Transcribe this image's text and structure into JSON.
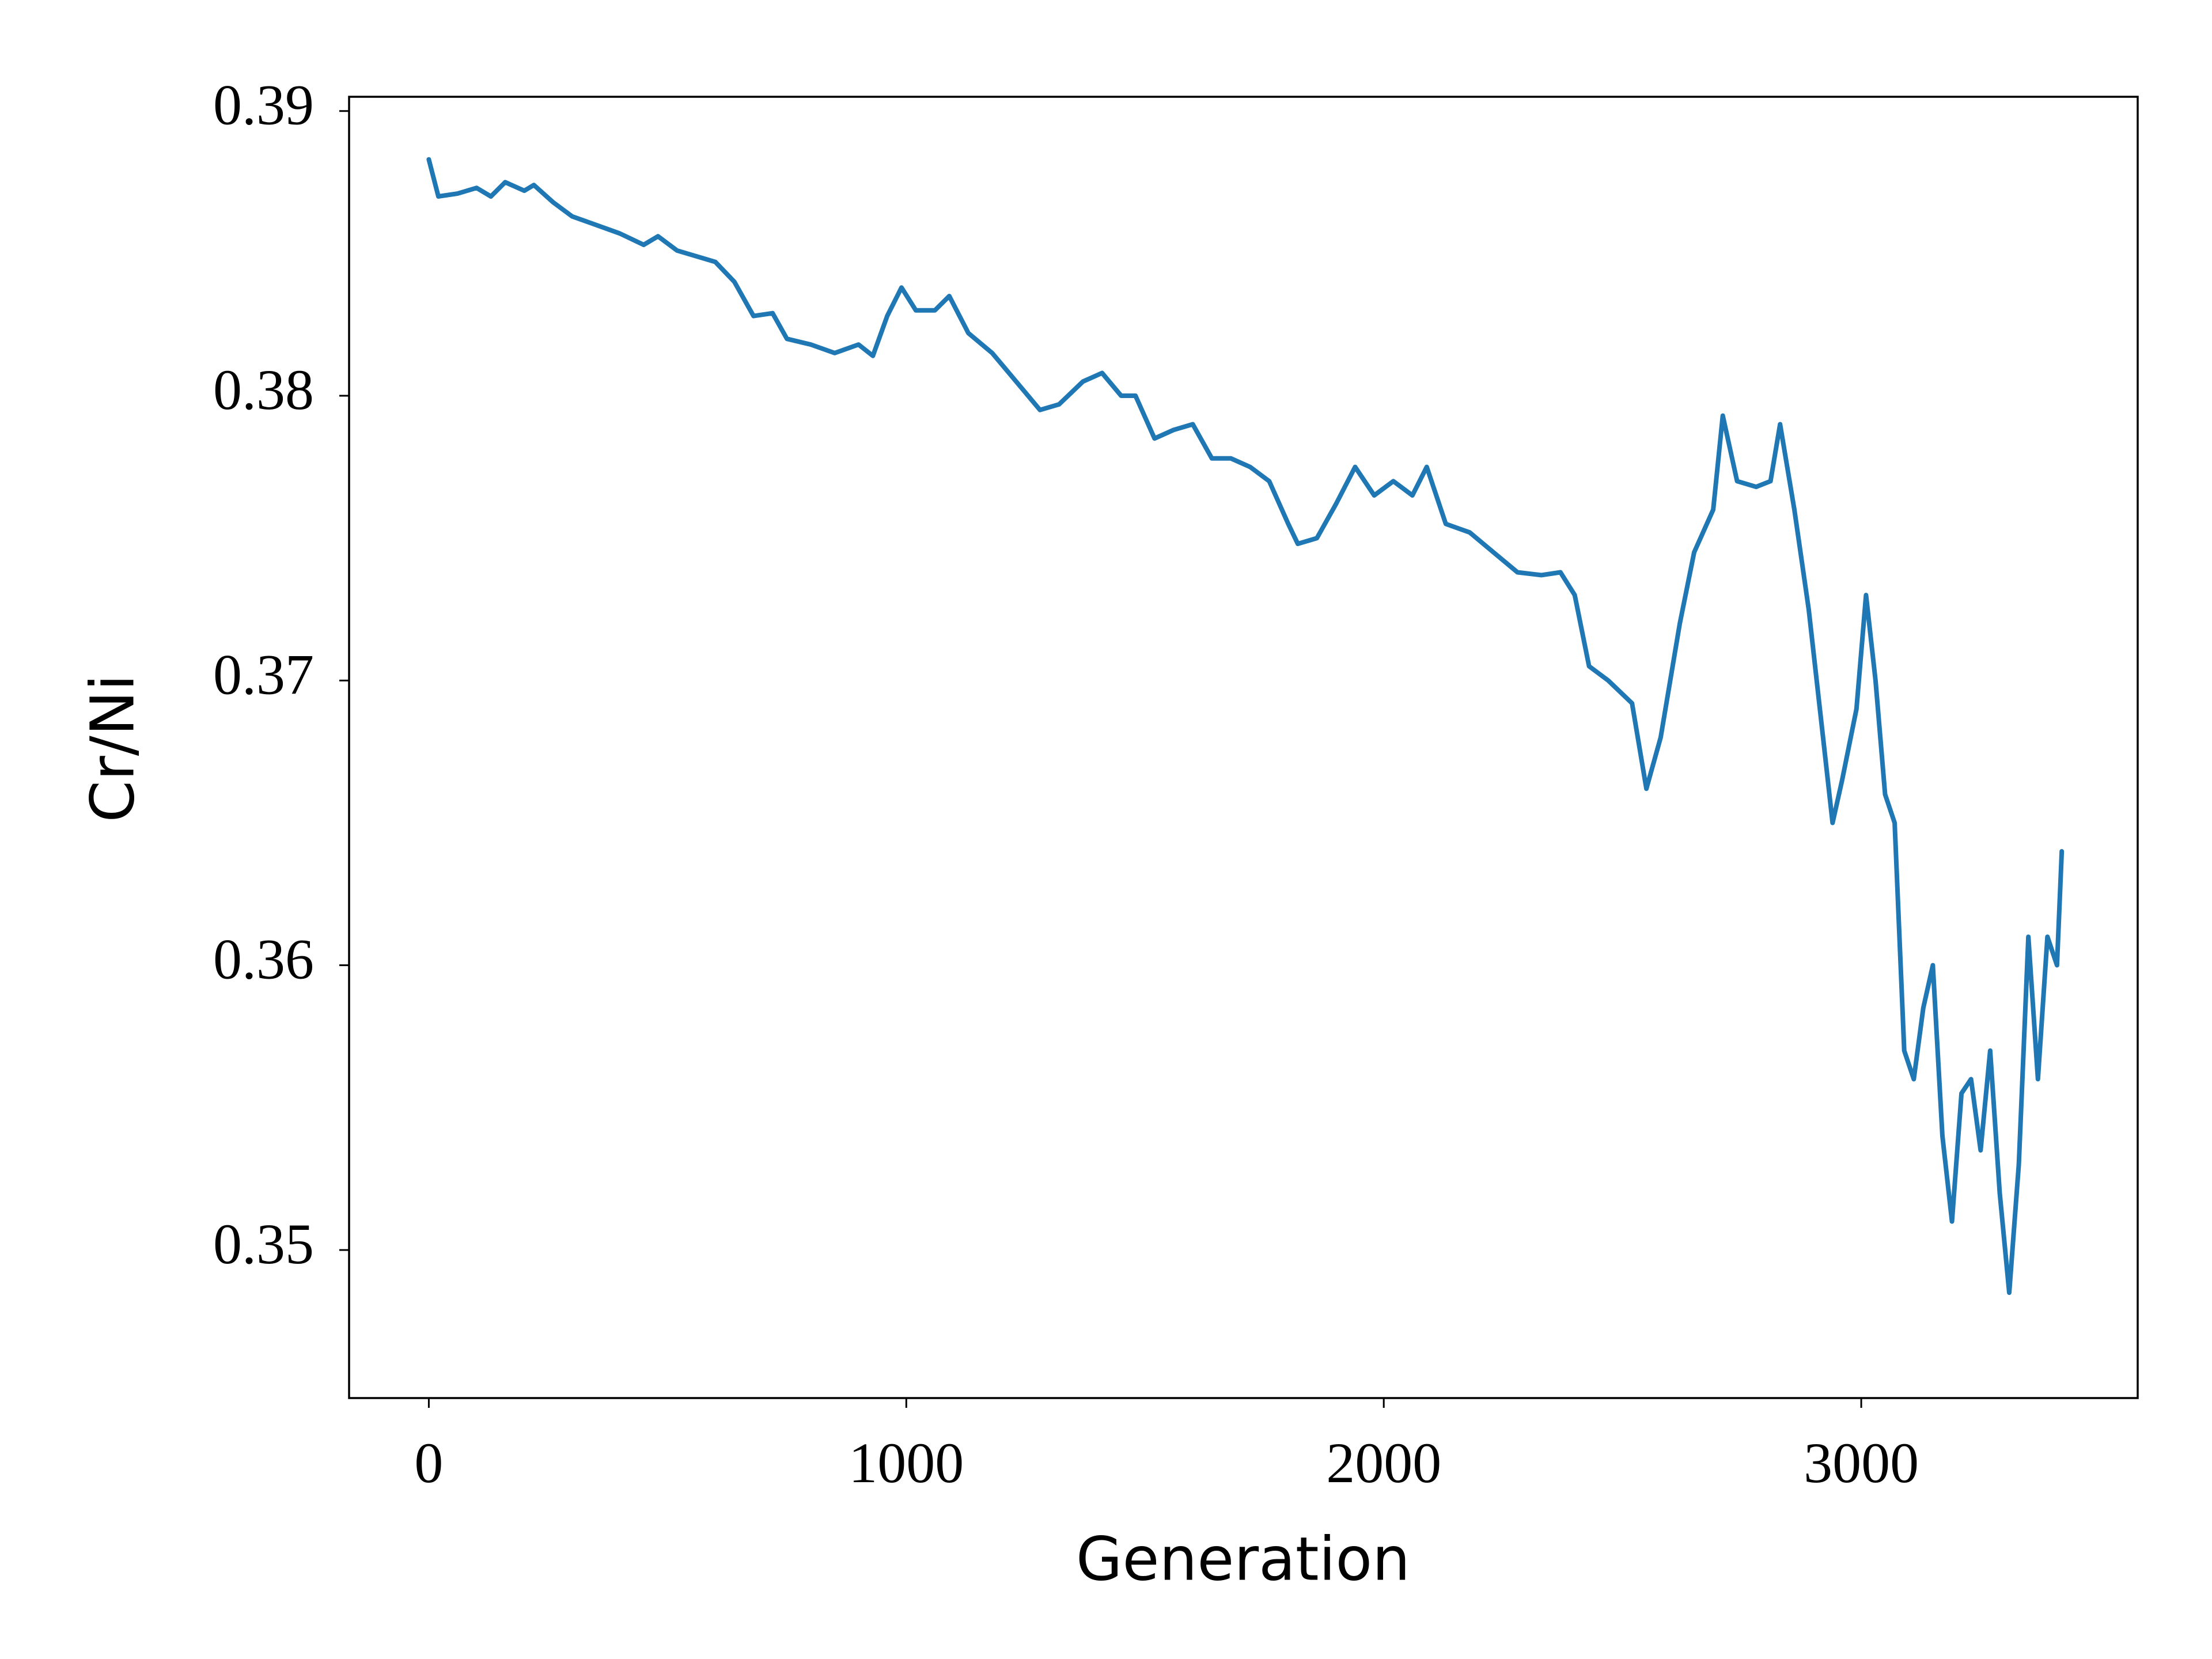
{
  "chart_data": {
    "type": "line",
    "x_label": "Generation",
    "y_label": "Cr/Ni",
    "xlim": [
      -167,
      3579
    ],
    "ylim": [
      0.3448,
      0.3905
    ],
    "xticks": [
      0,
      1000,
      2000,
      3000
    ],
    "yticks": [
      0.35,
      0.36,
      0.37,
      0.38,
      0.39
    ],
    "grid": false,
    "x": [
      0,
      20,
      60,
      100,
      130,
      160,
      200,
      220,
      260,
      300,
      350,
      400,
      450,
      480,
      520,
      560,
      600,
      640,
      680,
      720,
      750,
      800,
      850,
      900,
      930,
      960,
      990,
      1020,
      1060,
      1090,
      1130,
      1180,
      1230,
      1280,
      1320,
      1370,
      1410,
      1450,
      1480,
      1520,
      1560,
      1600,
      1640,
      1680,
      1720,
      1760,
      1800,
      1820,
      1860,
      1900,
      1940,
      1980,
      2020,
      2060,
      2090,
      2130,
      2180,
      2230,
      2280,
      2330,
      2370,
      2400,
      2430,
      2470,
      2520,
      2550,
      2580,
      2620,
      2650,
      2690,
      2710,
      2740,
      2780,
      2810,
      2830,
      2860,
      2890,
      2920,
      2940,
      2960,
      2990,
      3010,
      3030,
      3050,
      3070,
      3090,
      3110,
      3130,
      3150,
      3170,
      3190,
      3210,
      3230,
      3250,
      3270,
      3290,
      3310,
      3330,
      3350,
      3370,
      3390,
      3410,
      3420
    ],
    "series": [
      {
        "name": "Cr/Ni",
        "color": "#1f77b4",
        "values": [
          0.3883,
          0.387,
          0.3871,
          0.3873,
          0.387,
          0.3875,
          0.3872,
          0.3874,
          0.3868,
          0.3863,
          0.386,
          0.3857,
          0.3853,
          0.3856,
          0.3851,
          0.3849,
          0.3847,
          0.384,
          0.3828,
          0.3829,
          0.382,
          0.3818,
          0.3815,
          0.3818,
          0.3814,
          0.3828,
          0.3838,
          0.383,
          0.383,
          0.3835,
          0.3822,
          0.3815,
          0.3805,
          0.3795,
          0.3797,
          0.3805,
          0.3808,
          0.38,
          0.38,
          0.3785,
          0.3788,
          0.379,
          0.3778,
          0.3778,
          0.3775,
          0.377,
          0.3755,
          0.3748,
          0.375,
          0.3762,
          0.3775,
          0.3765,
          0.377,
          0.3765,
          0.3775,
          0.3755,
          0.3752,
          0.3745,
          0.3738,
          0.3737,
          0.3738,
          0.373,
          0.3705,
          0.37,
          0.3692,
          0.3662,
          0.368,
          0.372,
          0.3745,
          0.376,
          0.3793,
          0.377,
          0.3768,
          0.377,
          0.379,
          0.376,
          0.3725,
          0.368,
          0.365,
          0.3665,
          0.369,
          0.373,
          0.37,
          0.366,
          0.365,
          0.357,
          0.356,
          0.3585,
          0.36,
          0.354,
          0.351,
          0.3555,
          0.356,
          0.3535,
          0.357,
          0.352,
          0.3485,
          0.353,
          0.361,
          0.356,
          0.361,
          0.36,
          0.364
        ]
      }
    ]
  }
}
